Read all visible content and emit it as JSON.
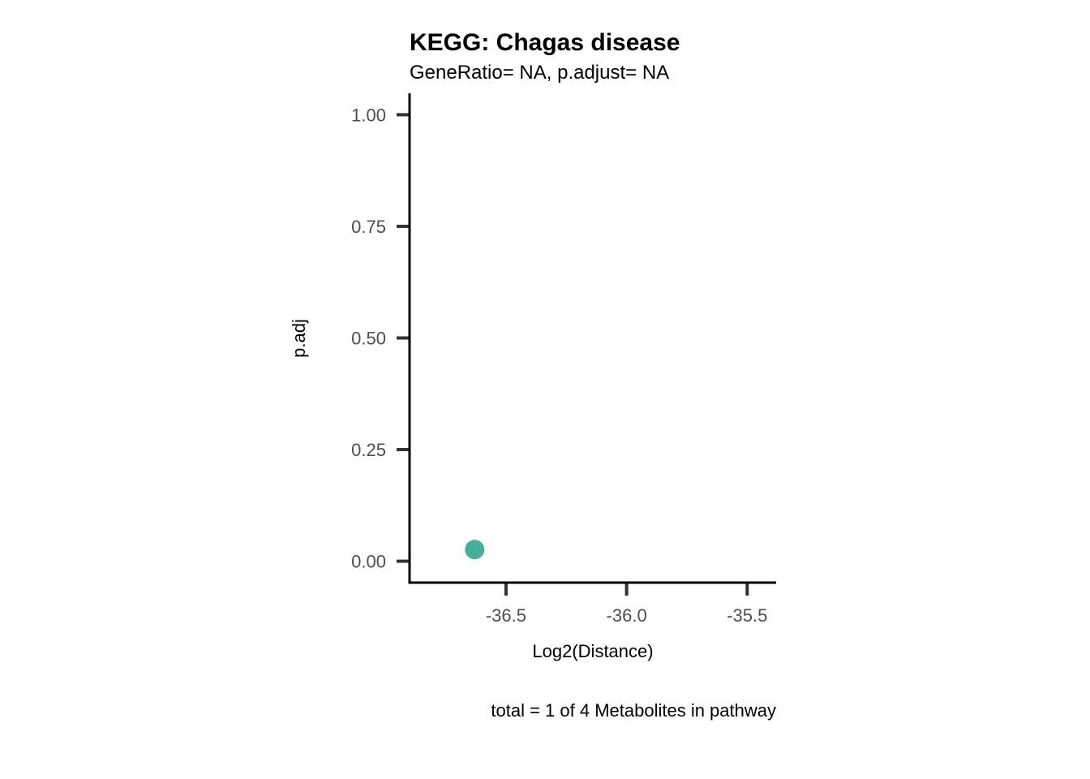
{
  "chart_data": {
    "type": "scatter",
    "title": "KEGG: Chagas disease",
    "subtitle": "GeneRatio= NA, p.adjust= NA",
    "xlabel": "Log2(Distance)",
    "ylabel": "p.adj",
    "caption": "total = 1 of 4 Metabolites in pathway",
    "xlim": [
      -36.9,
      -35.38
    ],
    "ylim": [
      -0.048,
      1.048
    ],
    "x_ticks": [
      -36.5,
      -36.0,
      -35.5
    ],
    "x_tick_labels": [
      "-36.5",
      "-36.0",
      "-35.5"
    ],
    "y_ticks": [
      0.0,
      0.25,
      0.5,
      0.75,
      1.0
    ],
    "y_tick_labels": [
      "0.00",
      "0.25",
      "0.50",
      "0.75",
      "1.00"
    ],
    "grid": false,
    "legend": "none",
    "point_color": "#48AE9B",
    "points": [
      {
        "x": -36.63,
        "y": 0.026
      }
    ]
  }
}
